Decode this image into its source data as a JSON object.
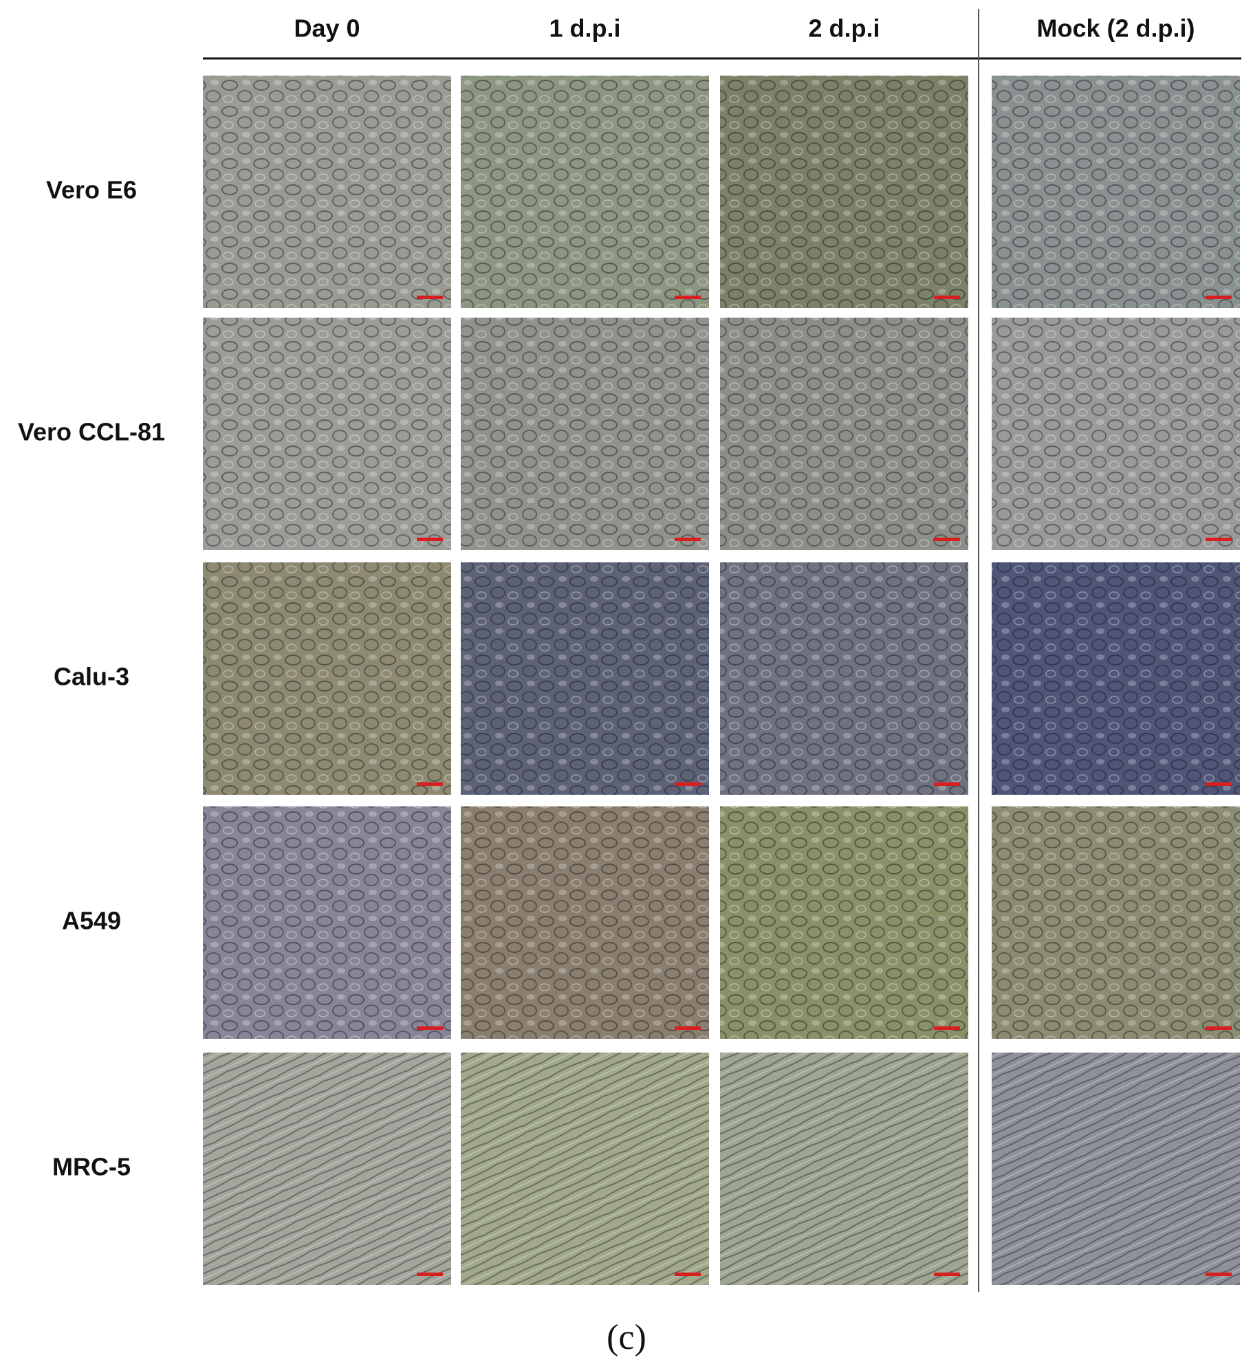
{
  "columns": [
    "Day 0",
    "1 d.p.i",
    "2 d.p.i",
    "Mock (2 d.p.i)"
  ],
  "rows": [
    "Vero E6",
    "Vero CCL-81",
    "Calu-3",
    "A549",
    "MRC-5"
  ],
  "caption": "(c)"
}
